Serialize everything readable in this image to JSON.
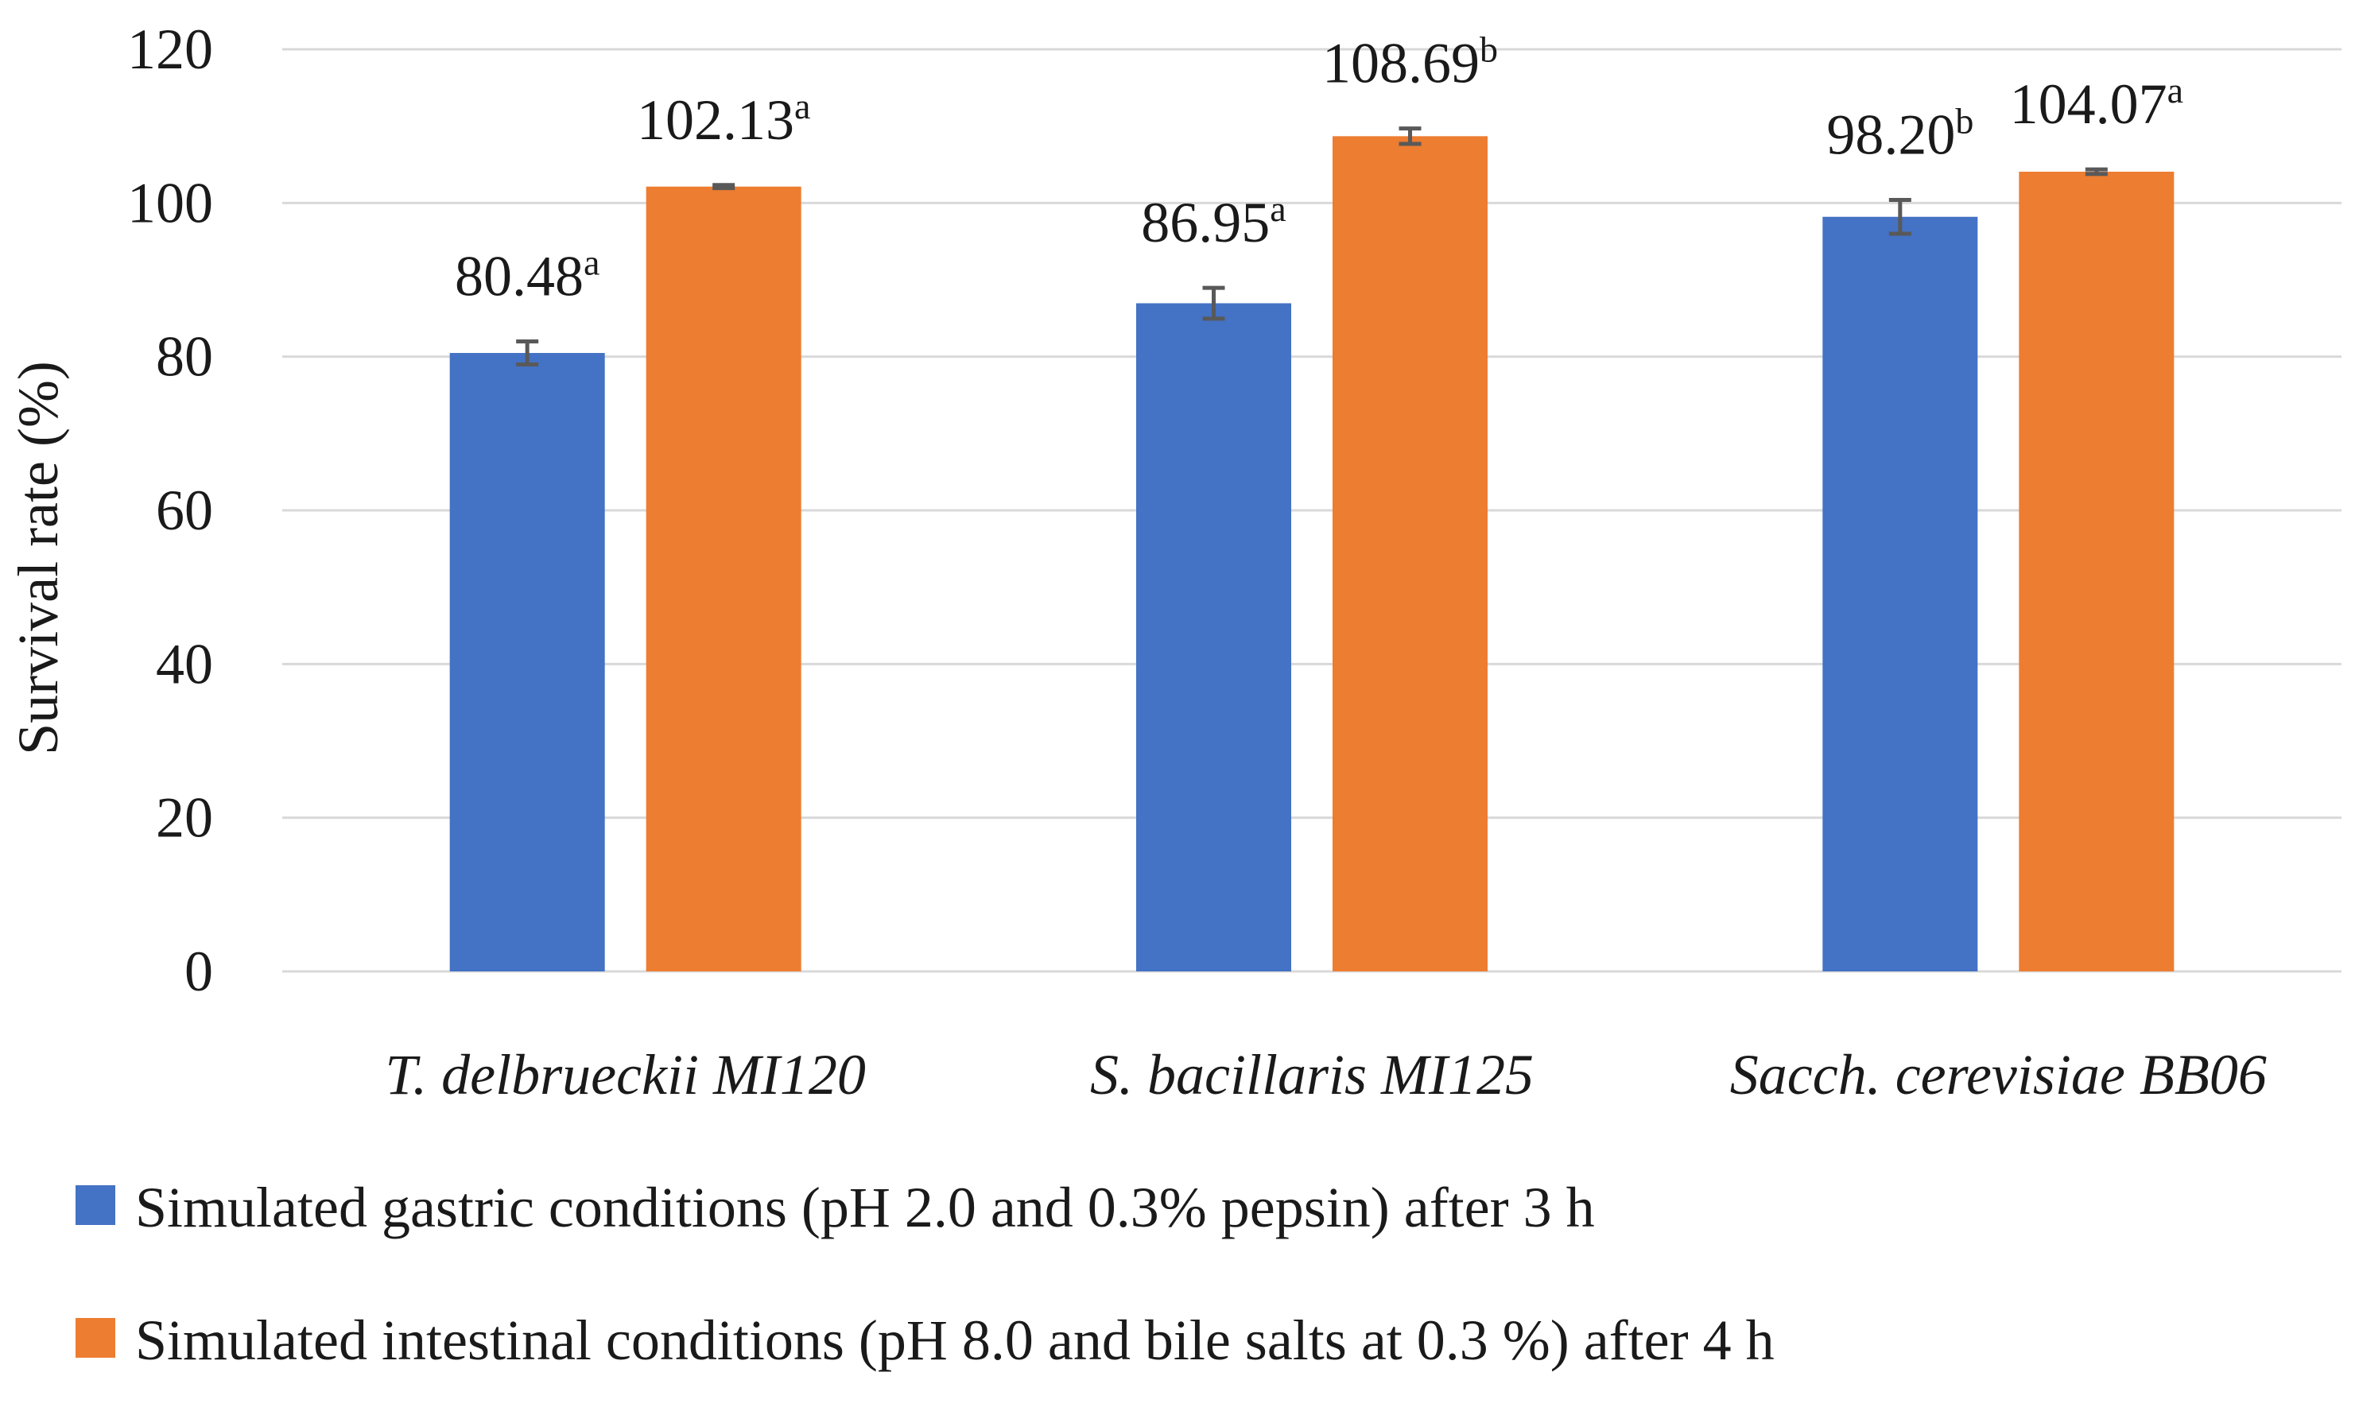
{
  "chart_data": {
    "type": "bar",
    "title": "",
    "xlabel": "",
    "ylabel": "Survival rate (%)",
    "ylim": [
      0,
      120
    ],
    "ytick_step": 20,
    "grid": true,
    "legend_position": "bottom",
    "categories": [
      "T. delbrueckii MI120",
      "S. bacillaris MI125",
      "Sacch. cerevisiae BB06"
    ],
    "series": [
      {
        "name": "Simulated gastric conditions (pH 2.0 and 0.3% pepsin) after 3 h",
        "color": "#4472c4",
        "values": [
          80.48,
          86.95,
          98.2
        ],
        "errors": [
          1.5,
          2.0,
          2.2
        ],
        "labels": [
          "80.48",
          "86.95",
          "98.20"
        ],
        "letters": [
          "a",
          "a",
          "b"
        ]
      },
      {
        "name": "Simulated intestinal conditions (pH 8.0 and bile salts at 0.3 %) after 4 h",
        "color": "#ed7d31",
        "values": [
          102.13,
          108.69,
          104.07
        ],
        "errors": [
          0.2,
          1.0,
          0.3
        ],
        "labels": [
          "102.13",
          "108.69",
          "104.07"
        ],
        "letters": [
          "a",
          "b",
          "a"
        ]
      }
    ]
  }
}
